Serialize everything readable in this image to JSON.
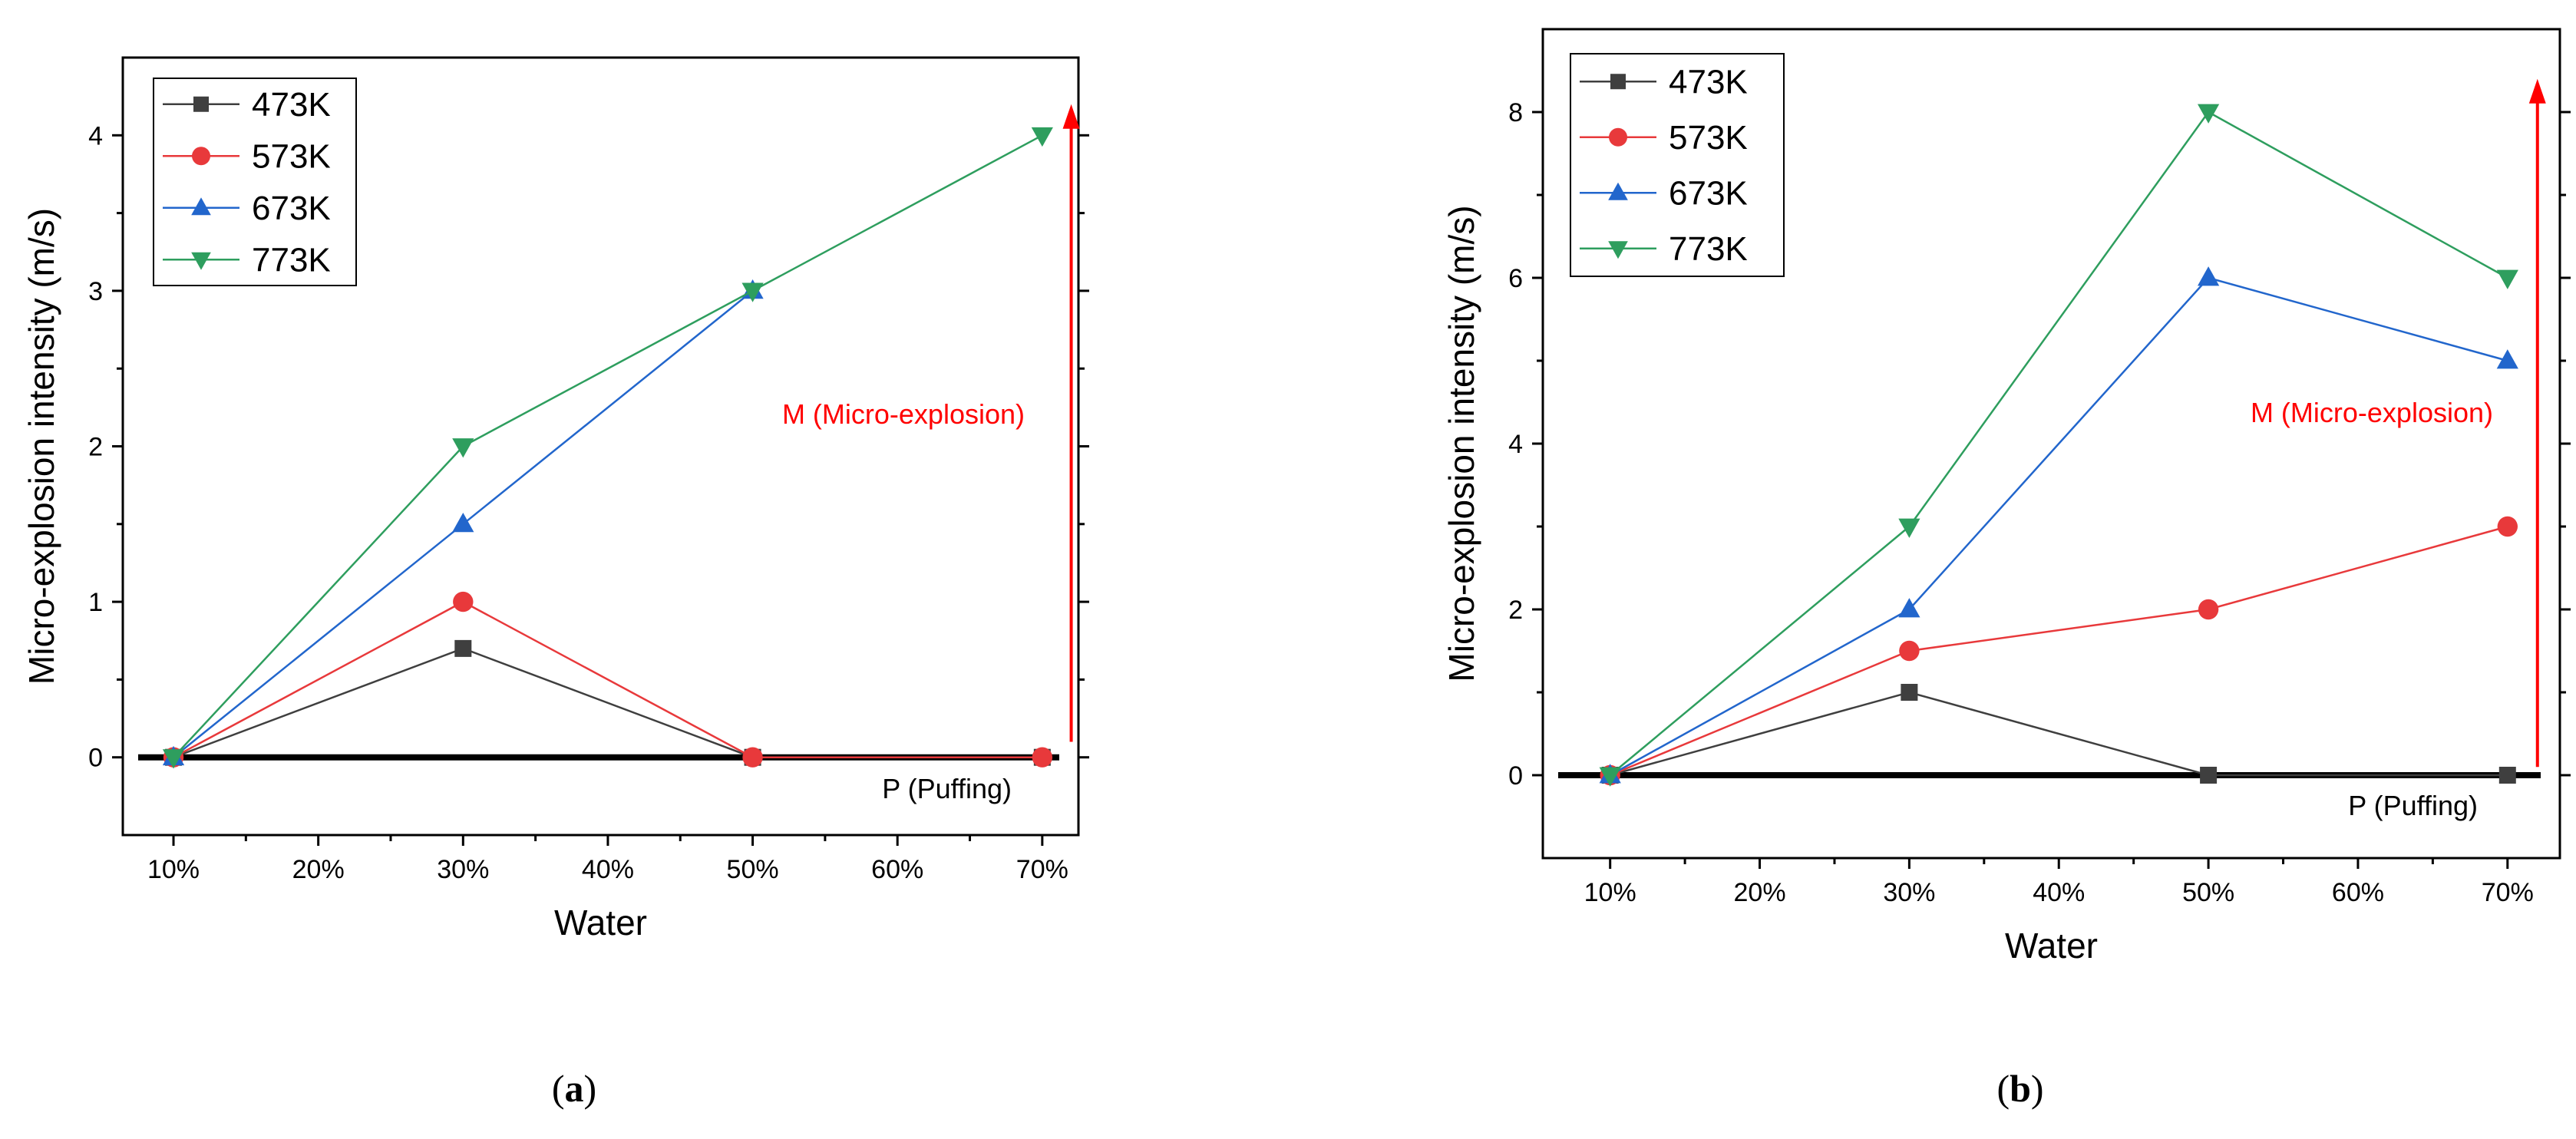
{
  "chart_data": [
    {
      "type": "line",
      "panel": "a",
      "caption_open": "(",
      "caption_letter": "a",
      "caption_close": ")",
      "xlabel": "Water",
      "ylabel": "Micro-explosion intensity (m/s)",
      "x_ticks": [
        "10%",
        "20%",
        "30%",
        "40%",
        "50%",
        "60%",
        "70%"
      ],
      "x_tick_values": [
        10,
        20,
        30,
        40,
        50,
        60,
        70
      ],
      "xlim": [
        6.5,
        72.5
      ],
      "ylim": [
        -0.5,
        4.5
      ],
      "y_ticks": [
        0,
        1,
        2,
        3,
        4
      ],
      "y_tick_labels": [
        "0",
        "1",
        "2",
        "3",
        "4"
      ],
      "legend": "top-left",
      "series": [
        {
          "name": "473K",
          "color": "#3f3f3f",
          "marker": "square",
          "x": [
            10,
            30,
            50,
            70
          ],
          "values": [
            0,
            0.7,
            0,
            0
          ]
        },
        {
          "name": "573K",
          "color": "#e8393b",
          "marker": "circle",
          "x": [
            10,
            30,
            50,
            70
          ],
          "values": [
            0,
            1,
            0,
            0
          ]
        },
        {
          "name": "673K",
          "color": "#2266cc",
          "marker": "triangle-up",
          "x": [
            10,
            30,
            50
          ],
          "values": [
            0,
            1.5,
            3
          ]
        },
        {
          "name": "773K",
          "color": "#2e9e5e",
          "marker": "triangle-down",
          "x": [
            10,
            30,
            50,
            70
          ],
          "values": [
            0,
            2,
            3,
            4
          ]
        }
      ],
      "annotations": {
        "micro_explosion": "M (Micro-explosion)",
        "puffing": "P (Puffing)",
        "arrow_from": 0.1,
        "arrow_to": 4.2,
        "arrow_x": 72
      }
    },
    {
      "type": "line",
      "panel": "b",
      "caption_open": "(",
      "caption_letter": "b",
      "caption_close": ")",
      "xlabel": "Water",
      "ylabel": "Micro-explosion intensity (m/s)",
      "x_ticks": [
        "10%",
        "20%",
        "30%",
        "40%",
        "50%",
        "60%",
        "70%"
      ],
      "x_tick_values": [
        10,
        20,
        30,
        40,
        50,
        60,
        70
      ],
      "xlim": [
        5.5,
        73.5
      ],
      "ylim": [
        -1,
        9
      ],
      "y_ticks": [
        0,
        2,
        4,
        6,
        8
      ],
      "y_tick_labels": [
        "0",
        "2",
        "4",
        "6",
        "8"
      ],
      "legend": "top-left",
      "series": [
        {
          "name": "473K",
          "color": "#3f3f3f",
          "marker": "square",
          "x": [
            10,
            30,
            50,
            70
          ],
          "values": [
            0,
            1,
            0,
            0
          ]
        },
        {
          "name": "573K",
          "color": "#e8393b",
          "marker": "circle",
          "x": [
            10,
            30,
            50,
            70
          ],
          "values": [
            0,
            1.5,
            2,
            3
          ]
        },
        {
          "name": "673K",
          "color": "#2266cc",
          "marker": "triangle-up",
          "x": [
            10,
            30,
            50,
            70
          ],
          "values": [
            0,
            2,
            6,
            5
          ]
        },
        {
          "name": "773K",
          "color": "#2e9e5e",
          "marker": "triangle-down",
          "x": [
            10,
            30,
            50,
            70
          ],
          "values": [
            0,
            3,
            8,
            6
          ]
        }
      ],
      "annotations": {
        "micro_explosion": "M (Micro-explosion)",
        "puffing": "P (Puffing)",
        "arrow_from": 0.1,
        "arrow_to": 8.4,
        "arrow_x": 72
      }
    }
  ]
}
